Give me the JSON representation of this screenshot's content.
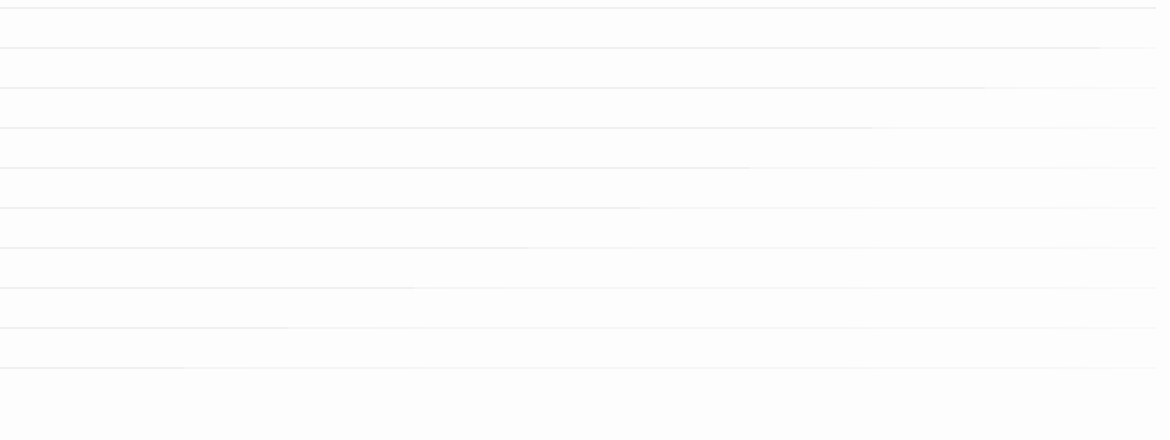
{
  "skeleton": {
    "rows": [
      {
        "id": "row-0"
      },
      {
        "id": "row-1"
      },
      {
        "id": "row-2"
      },
      {
        "id": "row-3"
      },
      {
        "id": "row-4"
      },
      {
        "id": "row-5"
      },
      {
        "id": "row-6"
      },
      {
        "id": "row-7"
      },
      {
        "id": "row-8"
      },
      {
        "id": "row-9"
      }
    ],
    "colors": {
      "background": "#fdfdfd",
      "line": "#f3f3f3",
      "segment": "#efefef"
    }
  }
}
